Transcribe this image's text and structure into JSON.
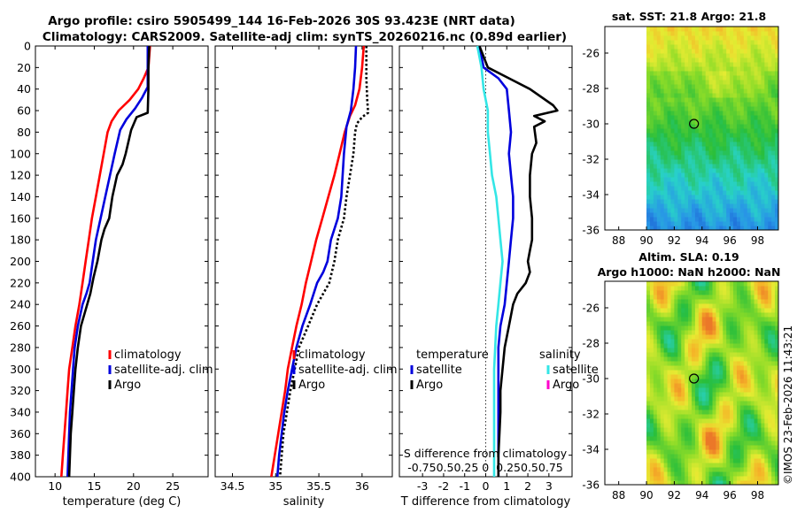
{
  "title": {
    "line1": "Argo profile: csiro 5905499_144 16-Feb-2026 30S 93.423E (NRT data)",
    "line2": "Climatology: CARS2009. Satellite-adj clim: synTS_20260216.nc (0.89d earlier)"
  },
  "timestamp": "©IMOS 23-Feb-2026 11:43:21",
  "chart_data": [
    {
      "type": "line",
      "id": "temperature",
      "xlabel": "temperature (deg C)",
      "ylabel": "",
      "xlim": [
        7.5,
        29.5
      ],
      "ylim": [
        400,
        0
      ],
      "xticks": [
        10,
        15,
        20,
        25
      ],
      "xtick_labels": [
        "10",
        "15",
        "20",
        "25"
      ],
      "yticks": [
        0,
        20,
        40,
        60,
        80,
        100,
        120,
        140,
        160,
        180,
        200,
        220,
        240,
        260,
        280,
        300,
        320,
        340,
        360,
        380,
        400
      ],
      "legend": [
        "climatology",
        "satellite-adj. clim",
        "Argo"
      ],
      "series": [
        {
          "name": "climatology",
          "color": "#ff0000",
          "points": [
            [
              22.1,
              0
            ],
            [
              21.9,
              20
            ],
            [
              21.3,
              30
            ],
            [
              20.6,
              40
            ],
            [
              19.5,
              50
            ],
            [
              18.1,
              60
            ],
            [
              17.2,
              70
            ],
            [
              16.7,
              80
            ],
            [
              16.2,
              100
            ],
            [
              15.7,
              120
            ],
            [
              15.2,
              140
            ],
            [
              14.7,
              160
            ],
            [
              14.3,
              180
            ],
            [
              13.9,
              200
            ],
            [
              13.5,
              220
            ],
            [
              13.1,
              240
            ],
            [
              12.6,
              260
            ],
            [
              12.2,
              280
            ],
            [
              11.8,
              300
            ],
            [
              11.6,
              320
            ],
            [
              11.4,
              340
            ],
            [
              11.2,
              360
            ],
            [
              11.0,
              380
            ],
            [
              10.8,
              400
            ]
          ]
        },
        {
          "name": "satellite-adj. clim",
          "color": "#0000dd",
          "points": [
            [
              21.8,
              0
            ],
            [
              21.8,
              20
            ],
            [
              21.8,
              38
            ],
            [
              21.1,
              48
            ],
            [
              20.2,
              58
            ],
            [
              19.1,
              68
            ],
            [
              18.3,
              78
            ],
            [
              17.6,
              100
            ],
            [
              17.0,
              120
            ],
            [
              16.4,
              140
            ],
            [
              15.8,
              160
            ],
            [
              15.2,
              180
            ],
            [
              14.8,
              200
            ],
            [
              14.4,
              220
            ],
            [
              14.0,
              230
            ],
            [
              13.5,
              240
            ],
            [
              12.9,
              260
            ],
            [
              12.5,
              280
            ],
            [
              12.3,
              300
            ],
            [
              12.1,
              320
            ],
            [
              11.9,
              340
            ],
            [
              11.8,
              360
            ],
            [
              11.7,
              380
            ],
            [
              11.6,
              400
            ]
          ]
        },
        {
          "name": "Argo",
          "color": "#000000",
          "points": [
            [
              22.0,
              0
            ],
            [
              21.9,
              20
            ],
            [
              21.9,
              40
            ],
            [
              21.8,
              62
            ],
            [
              20.4,
              66
            ],
            [
              19.7,
              78
            ],
            [
              19.0,
              100
            ],
            [
              18.6,
              110
            ],
            [
              17.9,
              120
            ],
            [
              17.3,
              140
            ],
            [
              16.9,
              160
            ],
            [
              16.3,
              170
            ],
            [
              15.9,
              180
            ],
            [
              15.4,
              200
            ],
            [
              14.9,
              215
            ],
            [
              14.5,
              230
            ],
            [
              13.9,
              245
            ],
            [
              13.3,
              260
            ],
            [
              12.9,
              280
            ],
            [
              12.6,
              300
            ],
            [
              12.4,
              320
            ],
            [
              12.2,
              340
            ],
            [
              12.0,
              360
            ],
            [
              11.9,
              380
            ],
            [
              11.8,
              400
            ]
          ]
        }
      ]
    },
    {
      "type": "line",
      "id": "salinity",
      "xlabel": "salinity",
      "ylabel": "",
      "xlim": [
        34.3,
        36.35
      ],
      "ylim": [
        400,
        0
      ],
      "xticks": [
        34.5,
        35,
        35.5,
        36
      ],
      "xtick_labels": [
        "34.5",
        "35",
        "35.5",
        "36"
      ],
      "yticks": [
        0,
        20,
        40,
        60,
        80,
        100,
        120,
        140,
        160,
        180,
        200,
        220,
        240,
        260,
        280,
        300,
        320,
        340,
        360,
        380,
        400
      ],
      "legend": [
        "climatology",
        "satellite-adj. clim",
        "Argo"
      ],
      "series": [
        {
          "name": "climatology",
          "color": "#ff0000",
          "points": [
            [
              36.02,
              0
            ],
            [
              36.0,
              20
            ],
            [
              35.97,
              40
            ],
            [
              35.92,
              55
            ],
            [
              35.86,
              65
            ],
            [
              35.8,
              80
            ],
            [
              35.74,
              100
            ],
            [
              35.68,
              120
            ],
            [
              35.61,
              140
            ],
            [
              35.54,
              160
            ],
            [
              35.47,
              180
            ],
            [
              35.41,
              200
            ],
            [
              35.35,
              220
            ],
            [
              35.3,
              240
            ],
            [
              35.24,
              260
            ],
            [
              35.19,
              280
            ],
            [
              35.14,
              300
            ],
            [
              35.11,
              320
            ],
            [
              35.07,
              340
            ],
            [
              35.03,
              360
            ],
            [
              34.99,
              380
            ],
            [
              34.95,
              400
            ]
          ]
        },
        {
          "name": "satellite-adj. clim",
          "color": "#0000dd",
          "points": [
            [
              35.93,
              0
            ],
            [
              35.92,
              20
            ],
            [
              35.9,
              40
            ],
            [
              35.87,
              60
            ],
            [
              35.82,
              75
            ],
            [
              35.79,
              100
            ],
            [
              35.76,
              140
            ],
            [
              35.72,
              160
            ],
            [
              35.64,
              180
            ],
            [
              35.6,
              200
            ],
            [
              35.55,
              210
            ],
            [
              35.48,
              220
            ],
            [
              35.4,
              240
            ],
            [
              35.31,
              260
            ],
            [
              35.24,
              280
            ],
            [
              35.19,
              300
            ],
            [
              35.14,
              320
            ],
            [
              35.1,
              340
            ],
            [
              35.07,
              360
            ],
            [
              35.04,
              380
            ],
            [
              35.02,
              400
            ]
          ]
        },
        {
          "name": "Argo",
          "color": "#000000",
          "dashed": true,
          "points": [
            [
              36.05,
              0
            ],
            [
              36.05,
              30
            ],
            [
              36.06,
              50
            ],
            [
              36.07,
              62
            ],
            [
              36.0,
              66
            ],
            [
              35.94,
              72
            ],
            [
              35.92,
              80
            ],
            [
              35.9,
              100
            ],
            [
              35.86,
              120
            ],
            [
              35.82,
              140
            ],
            [
              35.79,
              160
            ],
            [
              35.72,
              180
            ],
            [
              35.68,
              200
            ],
            [
              35.62,
              220
            ],
            [
              35.48,
              240
            ],
            [
              35.35,
              265
            ],
            [
              35.27,
              280
            ],
            [
              35.22,
              300
            ],
            [
              35.17,
              320
            ],
            [
              35.13,
              340
            ],
            [
              35.09,
              360
            ],
            [
              35.07,
              380
            ],
            [
              35.05,
              400
            ]
          ]
        }
      ]
    },
    {
      "type": "line",
      "id": "difference",
      "xlabel": "T difference from climatology",
      "ylabel": "",
      "xlim": [
        -4.1,
        4.1
      ],
      "ylim": [
        400,
        0
      ],
      "xticks": [
        -3,
        -2,
        -1,
        0,
        1,
        2,
        3
      ],
      "xtick_labels": [
        "-3",
        "-2",
        "-1",
        "0",
        "1",
        "2",
        "3"
      ],
      "yticks": [
        0,
        20,
        40,
        60,
        80,
        100,
        120,
        140,
        160,
        180,
        200,
        220,
        240,
        260,
        280,
        300,
        320,
        340,
        360,
        380,
        400
      ],
      "inner_axis_label": "S difference from climatology",
      "inner_tick_labels": "-0.750.50.25 0  0.250.50.75",
      "legend_temperature_title": "temperature",
      "legend_salinity_title": "salinity",
      "legend_temperature": [
        "satellite",
        "Argo"
      ],
      "legend_salinity": [
        "satellite",
        "Argo"
      ],
      "legend_colors": {
        "temperature_satellite": "#0000dd",
        "temperature_argo": "#000000",
        "salinity_satellite": "#33e6e6",
        "salinity_argo": "#ff00cc"
      },
      "series": [
        {
          "name": "T satellite",
          "color": "#0000dd",
          "points": [
            [
              -0.3,
              0
            ],
            [
              -0.1,
              20
            ],
            [
              0.6,
              30
            ],
            [
              1.0,
              40
            ],
            [
              1.1,
              60
            ],
            [
              1.2,
              80
            ],
            [
              1.1,
              100
            ],
            [
              1.2,
              120
            ],
            [
              1.3,
              140
            ],
            [
              1.3,
              160
            ],
            [
              1.2,
              180
            ],
            [
              1.1,
              200
            ],
            [
              1.0,
              220
            ],
            [
              0.9,
              240
            ],
            [
              0.7,
              260
            ],
            [
              0.6,
              280
            ],
            [
              0.6,
              300
            ],
            [
              0.6,
              320
            ],
            [
              0.6,
              340
            ],
            [
              0.6,
              360
            ],
            [
              0.6,
              380
            ],
            [
              0.6,
              400
            ]
          ]
        },
        {
          "name": "T Argo",
          "color": "#000000",
          "points": [
            [
              -0.3,
              0
            ],
            [
              0.1,
              20
            ],
            [
              1.1,
              30
            ],
            [
              2.1,
              40
            ],
            [
              3.2,
              55
            ],
            [
              3.4,
              60
            ],
            [
              2.3,
              65
            ],
            [
              2.8,
              70
            ],
            [
              2.3,
              75
            ],
            [
              2.4,
              90
            ],
            [
              2.2,
              100
            ],
            [
              2.1,
              120
            ],
            [
              2.1,
              140
            ],
            [
              2.2,
              160
            ],
            [
              2.2,
              180
            ],
            [
              2.1,
              190
            ],
            [
              2.0,
              200
            ],
            [
              2.1,
              210
            ],
            [
              1.9,
              220
            ],
            [
              1.5,
              230
            ],
            [
              1.3,
              240
            ],
            [
              1.1,
              260
            ],
            [
              0.9,
              280
            ],
            [
              0.8,
              300
            ],
            [
              0.7,
              320
            ],
            [
              0.7,
              340
            ],
            [
              0.65,
              360
            ],
            [
              0.6,
              380
            ],
            [
              0.6,
              400
            ]
          ]
        },
        {
          "name": "S satellite",
          "color": "#33e6e6",
          "points": [
            [
              -0.4,
              0
            ],
            [
              -0.2,
              20
            ],
            [
              -0.1,
              40
            ],
            [
              0.1,
              60
            ],
            [
              0.1,
              80
            ],
            [
              0.2,
              100
            ],
            [
              0.3,
              120
            ],
            [
              0.5,
              140
            ],
            [
              0.6,
              160
            ],
            [
              0.7,
              180
            ],
            [
              0.8,
              200
            ],
            [
              0.7,
              220
            ],
            [
              0.6,
              240
            ],
            [
              0.5,
              260
            ],
            [
              0.45,
              280
            ],
            [
              0.4,
              300
            ],
            [
              0.4,
              320
            ],
            [
              0.4,
              340
            ],
            [
              0.4,
              360
            ],
            [
              0.4,
              380
            ],
            [
              0.4,
              400
            ]
          ]
        }
      ]
    },
    {
      "type": "heatmap",
      "id": "sst_map",
      "title": "sat. SST: 21.8 Argo: 21.8",
      "xlim": [
        87,
        99.5
      ],
      "ylim": [
        -36,
        -24.5
      ],
      "xticks": [
        88,
        90,
        92,
        94,
        96,
        98
      ],
      "xtick_labels": [
        "88",
        "90",
        "92",
        "94",
        "96",
        "98"
      ],
      "yticks": [
        -26,
        -28,
        -30,
        -32,
        -34,
        -36
      ],
      "ytick_labels": [
        "-26",
        "-28",
        "-30",
        "-32",
        "-34",
        "-36"
      ],
      "data_xmin": 90,
      "marker": [
        93.42,
        -30
      ]
    },
    {
      "type": "heatmap",
      "id": "sla_map",
      "title_line1": "Altim. SLA: 0.19",
      "title_line2": "Argo h1000: NaN h2000: NaN",
      "xlim": [
        87,
        99.5
      ],
      "ylim": [
        -36,
        -24.5
      ],
      "xticks": [
        88,
        90,
        92,
        94,
        96,
        98
      ],
      "xtick_labels": [
        "88",
        "90",
        "92",
        "94",
        "96",
        "98"
      ],
      "yticks": [
        -26,
        -28,
        -30,
        -32,
        -34,
        -36
      ],
      "ytick_labels": [
        "-26",
        "-28",
        "-30",
        "-32",
        "-34",
        "-36"
      ],
      "data_xmin": 90,
      "marker": [
        93.42,
        -30
      ]
    }
  ]
}
